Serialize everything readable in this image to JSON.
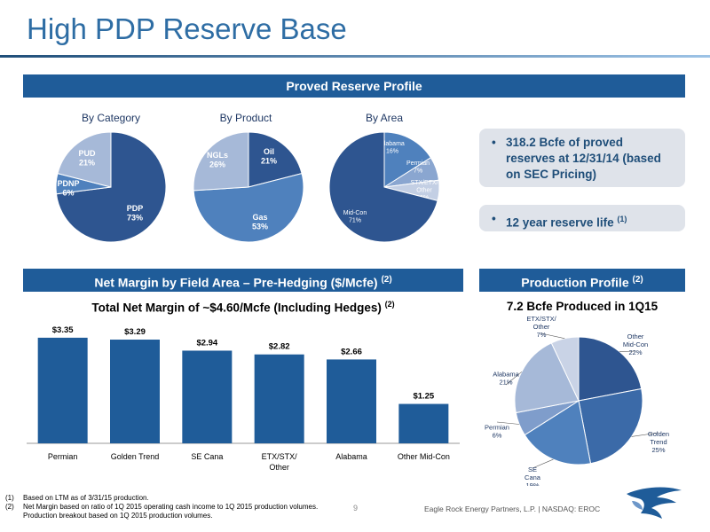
{
  "page": {
    "title": "High PDP Reserve Base",
    "page_number": "9",
    "company_footer": "Eagle Rock Energy Partners, L.P.  |  NASDAQ: EROC"
  },
  "banners": {
    "proved": "Proved Reserve Profile",
    "net_margin": "Net Margin by Field Area – Pre-Hedging ($/Mcfe)",
    "net_margin_note": "(2)",
    "production": "Production Profile",
    "production_note": "(2)"
  },
  "callouts": {
    "reserves": "318.2 Bcfe of proved reserves at 12/31/14 (based on SEC Pricing)",
    "life": "12 year reserve life",
    "life_note": "(1)"
  },
  "footnotes": {
    "n1_marker": "(1)",
    "n1": "Based on LTM as of 3/31/15 production.",
    "n2_marker": "(2)",
    "n2a": "Net Margin based on ratio of 1Q 2015 operating cash income to 1Q 2015 production volumes.",
    "n2b": "Production breakout based on 1Q 2015 production volumes."
  },
  "colors": {
    "dark": "#2e5590",
    "mid": "#4f81bd",
    "light": "#a6b9d8",
    "bar": "#1f5c99",
    "banner": "#1f5c99"
  },
  "chart_data": [
    {
      "type": "pie",
      "title": "By Category",
      "slices": [
        {
          "label": "PDP",
          "value": 73,
          "display": "73%",
          "color": "#2e5590"
        },
        {
          "label": "PDNP",
          "value": 6,
          "display": "6%",
          "color": "#4f81bd"
        },
        {
          "label": "PUD",
          "value": 21,
          "display": "21%",
          "color": "#a6b9d8"
        }
      ]
    },
    {
      "type": "pie",
      "title": "By Product",
      "slices": [
        {
          "label": "Oil",
          "value": 21,
          "display": "21%",
          "color": "#2e5590"
        },
        {
          "label": "Gas",
          "value": 53,
          "display": "53%",
          "color": "#4f81bd"
        },
        {
          "label": "NGLs",
          "value": 26,
          "display": "26%",
          "color": "#a6b9d8"
        }
      ]
    },
    {
      "type": "pie",
      "title": "By Area",
      "slices": [
        {
          "label": "Alabama",
          "value": 16,
          "display": "16%",
          "color": "#4f81bd"
        },
        {
          "label": "Permian",
          "value": 7,
          "display": "7%",
          "color": "#8aa6d0"
        },
        {
          "label": "STX/ETX/ Other",
          "value": 6,
          "display": "6%",
          "color": "#c3cfe4"
        },
        {
          "label": "Mid-Con",
          "value": 71,
          "display": "71%",
          "color": "#2e5590"
        }
      ]
    },
    {
      "type": "bar",
      "title": "Total Net Margin of ~$4.60/Mcfe (Including Hedges)",
      "title_note": "(2)",
      "categories": [
        "Permian",
        "Golden Trend",
        "SE Cana",
        "ETX/STX/ Other",
        "Alabama",
        "Other Mid-Con"
      ],
      "values": [
        3.35,
        3.29,
        2.94,
        2.82,
        2.66,
        1.25
      ],
      "value_labels": [
        "$3.35",
        "$3.29",
        "$2.94",
        "$2.82",
        "$2.66",
        "$1.25"
      ],
      "ylim": [
        0,
        3.6
      ],
      "grid": false
    },
    {
      "type": "pie",
      "title": "7.2 Bcfe Produced in 1Q15",
      "slices": [
        {
          "label": "Other Mid-Con",
          "value": 22,
          "display": "22%",
          "color": "#2e5590"
        },
        {
          "label": "Golden Trend",
          "value": 25,
          "display": "25%",
          "color": "#3b6aa8"
        },
        {
          "label": "SE Cana",
          "value": 19,
          "display": "19%",
          "color": "#4f81bd"
        },
        {
          "label": "Permian",
          "value": 6,
          "display": "6%",
          "color": "#7f9dcb"
        },
        {
          "label": "Alabama",
          "value": 21,
          "display": "21%",
          "color": "#a6b9d8"
        },
        {
          "label": "ETX/STX/ Other",
          "value": 7,
          "display": "7%",
          "color": "#c9d3e6"
        }
      ]
    }
  ]
}
